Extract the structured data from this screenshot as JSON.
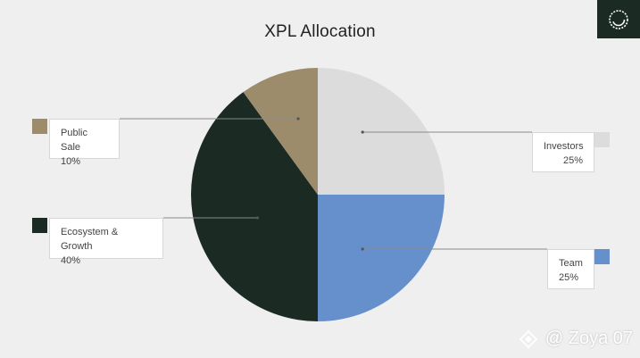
{
  "chart_data": {
    "type": "pie",
    "title": "XPL Allocation",
    "slices": [
      {
        "label": "Investors",
        "value": 25,
        "percent_label": "25%",
        "color": "#dcdcdc"
      },
      {
        "label": "Team",
        "value": 25,
        "percent_label": "25%",
        "color": "#6590cc"
      },
      {
        "label": "Ecosystem & Growth",
        "value": 40,
        "percent_label": "40%",
        "color": "#1b2b24"
      },
      {
        "label": "Public Sale",
        "value": 10,
        "percent_label": "10%",
        "color": "#9c8c6c"
      }
    ]
  },
  "watermark": {
    "text": "@ Zoya 07"
  },
  "colors": {
    "background": "#efefef",
    "brand_dark": "#1b2b24",
    "leader_line": "#8a8a8a"
  }
}
